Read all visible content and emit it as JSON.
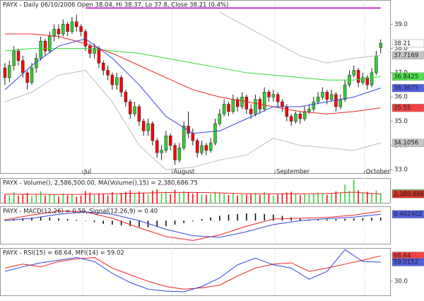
{
  "chart_data": [
    {
      "type": "candlestick",
      "title": "PAYX - Daily 06/10/2006 Open 38.04, Hi 38.37, Lo 37.8, Close 38.21 (0.4%)",
      "categories": [
        null,
        null,
        null,
        null,
        null,
        null,
        null,
        null,
        null,
        null,
        null,
        null,
        null,
        null,
        null,
        null,
        null,
        null,
        "Jul",
        null,
        null,
        null,
        null,
        null,
        null,
        null,
        null,
        null,
        null,
        null,
        null,
        null,
        null,
        null,
        null,
        null,
        null,
        null,
        "August",
        null,
        null,
        null,
        null,
        null,
        null,
        null,
        null,
        null,
        null,
        null,
        null,
        null,
        null,
        null,
        null,
        null,
        null,
        null,
        null,
        null,
        null,
        "September",
        null,
        null,
        null,
        null,
        null,
        null,
        null,
        null,
        null,
        null,
        null,
        null,
        null,
        null,
        null,
        null,
        null,
        null,
        null,
        "October",
        null,
        null,
        null
      ],
      "open": [
        37.2,
        36.8,
        37.3,
        37.9,
        37.5,
        37.0,
        36.6,
        37.2,
        37.6,
        38.3,
        37.9,
        38.5,
        38.8,
        38.6,
        39.0,
        38.7,
        39.1,
        38.9,
        38.7,
        38.1,
        37.8,
        38.0,
        37.4,
        37.1,
        36.9,
        36.5,
        36.8,
        36.2,
        35.8,
        35.3,
        35.6,
        35.0,
        34.6,
        34.9,
        34.2,
        33.7,
        33.8,
        34.4,
        34.0,
        33.4,
        33.9,
        34.8,
        34.5,
        34.2,
        33.7,
        34.0,
        33.8,
        34.1,
        34.9,
        35.3,
        35.7,
        35.4,
        35.9,
        35.6,
        36.0,
        35.5,
        35.3,
        35.9,
        35.5,
        36.2,
        36.0,
        36.1,
        35.8,
        35.6,
        35.2,
        35.0,
        35.3,
        35.1,
        35.4,
        35.5,
        35.8,
        36.0,
        36.2,
        35.9,
        36.1,
        35.6,
        35.9,
        36.5,
        36.9,
        37.1,
        36.6,
        36.8,
        36.5,
        37.0,
        38.04
      ],
      "high": [
        37.4,
        37.5,
        38.1,
        38.0,
        37.7,
        37.1,
        37.4,
        37.8,
        38.5,
        38.4,
        38.7,
        39.0,
        39.0,
        39.2,
        39.1,
        39.3,
        39.4,
        39.0,
        38.8,
        38.2,
        38.2,
        38.1,
        37.5,
        37.3,
        37.0,
        37.0,
        36.9,
        36.3,
        35.9,
        35.8,
        35.7,
        35.1,
        35.1,
        35.0,
        34.3,
        34.0,
        34.6,
        34.5,
        34.1,
        34.1,
        35.0,
        35.4,
        34.7,
        34.3,
        34.2,
        34.1,
        34.3,
        35.1,
        35.5,
        35.9,
        35.8,
        36.1,
        36.0,
        36.2,
        36.1,
        35.7,
        36.1,
        36.0,
        36.4,
        36.3,
        36.3,
        36.2,
        35.9,
        35.7,
        35.3,
        35.4,
        35.4,
        35.6,
        35.7,
        36.0,
        36.2,
        36.4,
        36.3,
        36.3,
        36.2,
        36.1,
        36.7,
        37.1,
        37.3,
        37.2,
        37.0,
        36.9,
        37.2,
        37.9,
        38.37
      ],
      "low": [
        36.5,
        36.6,
        37.1,
        37.3,
        36.8,
        36.3,
        36.5,
        37.0,
        37.5,
        37.7,
        37.8,
        38.3,
        38.4,
        38.5,
        38.5,
        38.6,
        38.7,
        38.5,
        37.9,
        37.6,
        37.6,
        37.2,
        36.9,
        36.7,
        36.3,
        36.3,
        36.0,
        35.6,
        35.1,
        35.2,
        34.8,
        34.4,
        34.4,
        34.0,
        33.5,
        33.4,
        33.7,
        33.8,
        33.2,
        33.3,
        33.8,
        34.3,
        34.0,
        33.5,
        33.6,
        33.6,
        33.7,
        34.0,
        34.8,
        35.2,
        35.2,
        35.3,
        35.4,
        35.5,
        35.3,
        35.1,
        35.2,
        35.3,
        35.4,
        35.8,
        35.8,
        35.6,
        35.4,
        35.0,
        34.8,
        34.9,
        34.9,
        35.0,
        35.3,
        35.4,
        35.7,
        35.9,
        35.7,
        35.8,
        35.4,
        35.5,
        35.8,
        36.4,
        36.8,
        36.4,
        36.5,
        36.3,
        36.4,
        36.9,
        37.8
      ],
      "close": [
        36.8,
        37.3,
        37.9,
        37.5,
        37.0,
        36.6,
        37.2,
        37.6,
        38.3,
        37.9,
        38.5,
        38.8,
        38.6,
        39.0,
        38.7,
        39.1,
        38.9,
        38.7,
        38.1,
        37.8,
        38.0,
        37.4,
        37.1,
        36.9,
        36.5,
        36.8,
        36.2,
        35.8,
        35.3,
        35.6,
        35.0,
        34.6,
        34.9,
        34.2,
        33.7,
        33.8,
        34.4,
        34.0,
        33.4,
        33.9,
        34.8,
        34.5,
        34.2,
        33.7,
        34.0,
        33.8,
        34.1,
        34.9,
        35.3,
        35.7,
        35.4,
        35.9,
        35.6,
        36.0,
        35.5,
        35.3,
        35.9,
        35.5,
        36.2,
        36.0,
        36.1,
        35.8,
        35.6,
        35.2,
        35.0,
        35.3,
        35.1,
        35.4,
        35.5,
        35.8,
        36.0,
        36.2,
        35.9,
        36.1,
        35.6,
        35.9,
        36.5,
        36.9,
        37.1,
        36.6,
        36.8,
        36.5,
        37.0,
        37.7,
        38.21
      ],
      "close_label": "38.21",
      "up_color": "#33cc33",
      "down_color": "#ff0000",
      "ylim": [
        32.83,
        40.0
      ],
      "yticks": [
        {
          "value": 33,
          "label": "33.0"
        },
        {
          "value": 34,
          "label": "34.0"
        },
        {
          "value": 35,
          "label": "35.0"
        },
        {
          "value": 36,
          "label": "36.0"
        },
        {
          "value": 37,
          "label": "37.0"
        },
        {
          "value": 38,
          "label": "38.0"
        },
        {
          "value": 39,
          "label": "39.0"
        }
      ],
      "series": [
        {
          "type": "line",
          "color": "#cc33cc",
          "width": 2,
          "x": [
            18,
            84
          ],
          "values": [
            39.67,
            39.67
          ]
        },
        {
          "type": "line",
          "color": "#bbbbbb",
          "width": 1,
          "x": [
            0,
            6,
            12,
            18,
            24,
            30,
            36,
            42,
            48,
            54,
            60,
            66,
            72,
            78,
            84
          ],
          "values": [
            null,
            null,
            null,
            null,
            null,
            null,
            null,
            null,
            39.5,
            38.9,
            38.3,
            37.7,
            37.4,
            37.6,
            37.7169
          ],
          "end_label": "37.7169"
        },
        {
          "type": "line",
          "color": "#bbbbbb",
          "width": 1,
          "x": [
            0,
            6,
            12,
            18,
            24,
            30,
            36,
            42,
            48,
            54,
            60,
            66,
            72,
            78,
            84
          ],
          "values": [
            35.8,
            36.2,
            36.9,
            37.1,
            35.8,
            34.0,
            33.0,
            33.1,
            33.4,
            33.6,
            34.3,
            34.0,
            33.9,
            33.8,
            34.1056
          ],
          "end_label": "34.1056"
        },
        {
          "type": "line",
          "color": "#33dd33",
          "width": 1,
          "x": [
            0,
            6,
            12,
            18,
            24,
            30,
            36,
            42,
            48,
            54,
            60,
            66,
            72,
            78,
            84
          ],
          "values": [
            37.9,
            38.0,
            38.0,
            38.0,
            37.9,
            37.8,
            37.6,
            37.4,
            37.2,
            37.0,
            36.9,
            36.8,
            36.7,
            36.7,
            36.8425
          ],
          "end_label": "36.8425"
        },
        {
          "type": "line",
          "color": "#ee2222",
          "width": 1,
          "x": [
            0,
            6,
            12,
            18,
            24,
            30,
            36,
            42,
            48,
            54,
            60,
            66,
            72,
            78,
            84
          ],
          "values": [
            38.6,
            38.6,
            38.5,
            38.2,
            37.8,
            37.3,
            36.8,
            36.3,
            36.0,
            35.8,
            35.6,
            35.4,
            35.3,
            35.4,
            35.55
          ],
          "end_label": "35.55"
        },
        {
          "type": "line",
          "color": "#3344dd",
          "width": 1,
          "x": [
            0,
            6,
            12,
            18,
            24,
            30,
            36,
            42,
            48,
            54,
            60,
            66,
            72,
            78,
            84
          ],
          "values": [
            36.3,
            37.3,
            38.1,
            38.4,
            37.6,
            36.5,
            35.2,
            34.5,
            34.6,
            35.1,
            35.6,
            35.6,
            35.8,
            36.0,
            36.3675
          ],
          "end_label": "36.3675"
        }
      ]
    },
    {
      "type": "bar",
      "title": "PAYX - Volume(), 2,586,500.00, MA(Volume(),15) = 2,380,686.75",
      "ylim": [
        0,
        6500000
      ],
      "series": [
        {
          "type": "bar",
          "color": "#00aa00",
          "values": [
            2300000,
            2100000,
            2900000,
            2000000,
            2400000,
            2700000,
            1900000,
            2200000,
            3100000,
            2000000,
            2500000,
            2300000,
            1800000,
            2600000,
            2100000,
            2400000,
            1700000,
            2000000,
            3200000,
            2800000,
            2200000,
            2600000,
            2400000,
            2100000,
            2900000,
            2300000,
            2700000,
            3000000,
            3400000,
            2500000,
            3100000,
            2800000,
            2300000,
            3300000,
            3600000,
            2600000,
            3000000,
            2400000,
            3500000,
            2700000,
            3200000,
            2900000,
            2500000,
            2800000,
            2300000,
            2200000,
            2400000,
            3000000,
            2700000,
            2500000,
            2200000,
            2600000,
            2100000,
            2400000,
            2300000,
            2500000,
            2700000,
            2200000,
            2900000,
            2400000,
            2000000,
            2300000,
            2600000,
            2800000,
            3000000,
            2400000,
            2200000,
            2500000,
            2300000,
            2600000,
            2800000,
            2500000,
            2200000,
            2600000,
            3100000,
            2700000,
            4800000,
            3200000,
            6100000,
            3400000,
            2800000,
            3000000,
            2700000,
            3300000,
            2586500
          ],
          "end_label": "2,586,500"
        },
        {
          "type": "line",
          "color": "#ee2222",
          "width": 1,
          "x": [
            0,
            6,
            12,
            18,
            24,
            30,
            36,
            42,
            48,
            54,
            60,
            66,
            72,
            78,
            84
          ],
          "values": [
            2400000,
            2350000,
            2300000,
            2350000,
            2500000,
            2650000,
            2800000,
            2850000,
            2700000,
            2500000,
            2450000,
            2500000,
            2550000,
            2900000,
            2380686.75
          ],
          "end_label": "2,380,686"
        }
      ]
    },
    {
      "type": "line",
      "title": "PAYX - MACD(12,26) = 0.59, Signal(12,26,9) = 0.40",
      "ylim": [
        -1.5,
        0.9
      ],
      "series": [
        {
          "type": "bar",
          "color": "#000000",
          "x": [
            0,
            2,
            4,
            6,
            8,
            10,
            12,
            14,
            16,
            18,
            20,
            22,
            24,
            26,
            28,
            30,
            32,
            34,
            36,
            38,
            40,
            42,
            44,
            46,
            48,
            50,
            52,
            54,
            56,
            58,
            60,
            62,
            64,
            66,
            68,
            70,
            72,
            74,
            76,
            78,
            80,
            82,
            84
          ],
          "values": [
            0.05,
            0.1,
            0.15,
            0.2,
            0.22,
            0.2,
            0.15,
            0.1,
            0.05,
            0.0,
            -0.1,
            -0.2,
            -0.25,
            -0.3,
            -0.35,
            -0.4,
            -0.42,
            -0.4,
            -0.35,
            -0.25,
            -0.15,
            -0.05,
            0.1,
            0.2,
            0.3,
            0.38,
            0.42,
            0.45,
            0.45,
            0.42,
            0.38,
            0.3,
            0.2,
            0.12,
            0.08,
            0.06,
            0.08,
            0.1,
            0.12,
            0.14,
            0.16,
            0.18,
            0.19
          ]
        },
        {
          "type": "line",
          "color": "#ee2222",
          "width": 1,
          "x": [
            0,
            6,
            12,
            18,
            24,
            30,
            36,
            42,
            48,
            54,
            60,
            66,
            72,
            78,
            84
          ],
          "values": [
            0.05,
            0.35,
            0.6,
            0.55,
            0.15,
            -0.45,
            -1.0,
            -1.25,
            -0.9,
            -0.35,
            0.1,
            0.15,
            0.2,
            0.35,
            0.59
          ]
        },
        {
          "type": "line",
          "color": "#3344dd",
          "width": 1,
          "x": [
            0,
            6,
            12,
            18,
            24,
            30,
            36,
            42,
            48,
            54,
            60,
            66,
            72,
            78,
            84
          ],
          "values": [
            0.0,
            0.15,
            0.4,
            0.55,
            0.4,
            0.0,
            -0.55,
            -0.95,
            -1.05,
            -0.7,
            -0.25,
            0.0,
            0.12,
            0.22,
            0.402402
          ],
          "end_label": "0.402402"
        }
      ]
    },
    {
      "type": "line",
      "title": "PAYX - RSI(15) = 68.64, MFI(14) = 59.02",
      "ylim": [
        7.5,
        80.5
      ],
      "yticks": [
        {
          "value": 30,
          "label": "30.0"
        }
      ],
      "series": [
        {
          "type": "line",
          "color": "#ee2222",
          "width": 1,
          "x": [
            0,
            4,
            8,
            12,
            16,
            20,
            24,
            28,
            32,
            36,
            40,
            44,
            48,
            52,
            56,
            60,
            64,
            68,
            72,
            76,
            80,
            84
          ],
          "values": [
            50,
            56,
            52,
            60,
            64,
            66,
            50,
            40,
            30,
            22,
            18,
            20,
            24,
            38,
            50,
            56,
            58,
            45,
            50,
            56,
            62,
            68.64
          ],
          "end_label": "68.64"
        },
        {
          "type": "line",
          "color": "#3344dd",
          "width": 1,
          "x": [
            0,
            4,
            8,
            12,
            16,
            20,
            24,
            28,
            32,
            36,
            40,
            44,
            48,
            52,
            56,
            60,
            64,
            68,
            72,
            76,
            80,
            84
          ],
          "values": [
            45,
            52,
            58,
            62,
            66,
            60,
            42,
            28,
            18,
            15,
            14,
            22,
            35,
            55,
            65,
            55,
            50,
            33,
            45,
            78,
            60,
            59.0152
          ],
          "end_label": "59.0152"
        }
      ]
    }
  ]
}
